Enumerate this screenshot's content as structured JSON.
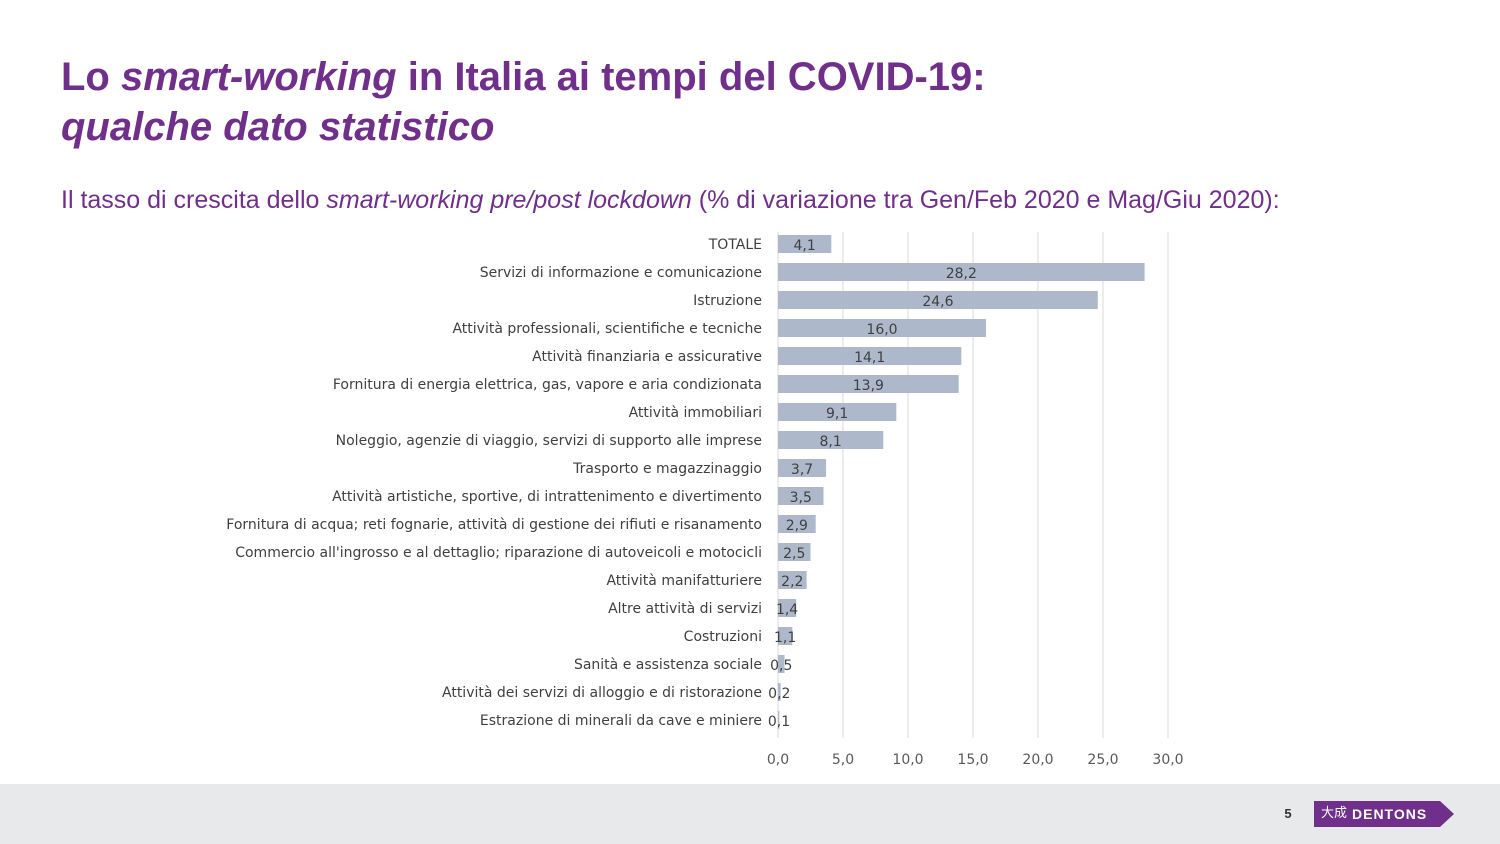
{
  "slide": {
    "title_part1": "Lo ",
    "title_italic": "smart-working",
    "title_part2": " in Italia ai tempi del COVID-19:",
    "title_line2": "qualche dato statistico",
    "subtitle_part1": "Il tasso di crescita dello ",
    "subtitle_italic": "smart-working pre/post lockdown",
    "subtitle_part2": " (% di variazione tra Gen/Feb 2020 e Mag/Giu 2020):",
    "page_number": "5"
  },
  "logo": {
    "glyph": "大成",
    "text": "DENTONS",
    "color": "#702f8a"
  },
  "colors": {
    "accent": "#702f8a",
    "bar": "#adb9ca",
    "footer_bg": "#e8e9eb"
  },
  "chart_data": {
    "type": "bar",
    "orientation": "horizontal",
    "categories": [
      "TOTALE",
      "Servizi di informazione e comunicazione",
      "Istruzione",
      "Attività professionali, scientifiche e tecniche",
      "Attività finanziaria e assicurative",
      "Fornitura di energia elettrica, gas, vapore e aria condizionata",
      "Attività immobiliari",
      "Noleggio, agenzie di viaggio, servizi di supporto alle imprese",
      "Trasporto e magazzinaggio",
      "Attività artistiche, sportive, di intrattenimento e divertimento",
      "Fornitura di acqua; reti fognarie, attività di gestione dei rifiuti e risanamento",
      "Commercio all'ingrosso e al dettaglio; riparazione di autoveicoli e motocicli",
      "Attività manifatturiere",
      "Altre attività di servizi",
      "Costruzioni",
      "Sanità e assistenza sociale",
      "Attività dei servizi di alloggio e di ristorazione",
      "Estrazione di minerali da cave e miniere"
    ],
    "values": [
      4.1,
      28.2,
      24.6,
      16.0,
      14.1,
      13.9,
      9.1,
      8.1,
      3.7,
      3.5,
      2.9,
      2.5,
      2.2,
      1.4,
      1.1,
      0.5,
      0.2,
      0.1
    ],
    "value_labels": [
      "4,1",
      "28,2",
      "24,6",
      "16,0",
      "14,1",
      "13,9",
      "9,1",
      "8,1",
      "3,7",
      "3,5",
      "2,9",
      "2,5",
      "2,2",
      "1,4",
      "1,1",
      "0,5",
      "0,2",
      "0,1"
    ],
    "xlim": [
      0,
      30
    ],
    "x_ticks": [
      0,
      5,
      10,
      15,
      20,
      25,
      30
    ],
    "x_tick_labels": [
      "0,0",
      "5,0",
      "10,0",
      "15,0",
      "20,0",
      "25,0",
      "30,0"
    ],
    "grid": true,
    "legend": "none",
    "bar_color": "#adb9ca"
  }
}
